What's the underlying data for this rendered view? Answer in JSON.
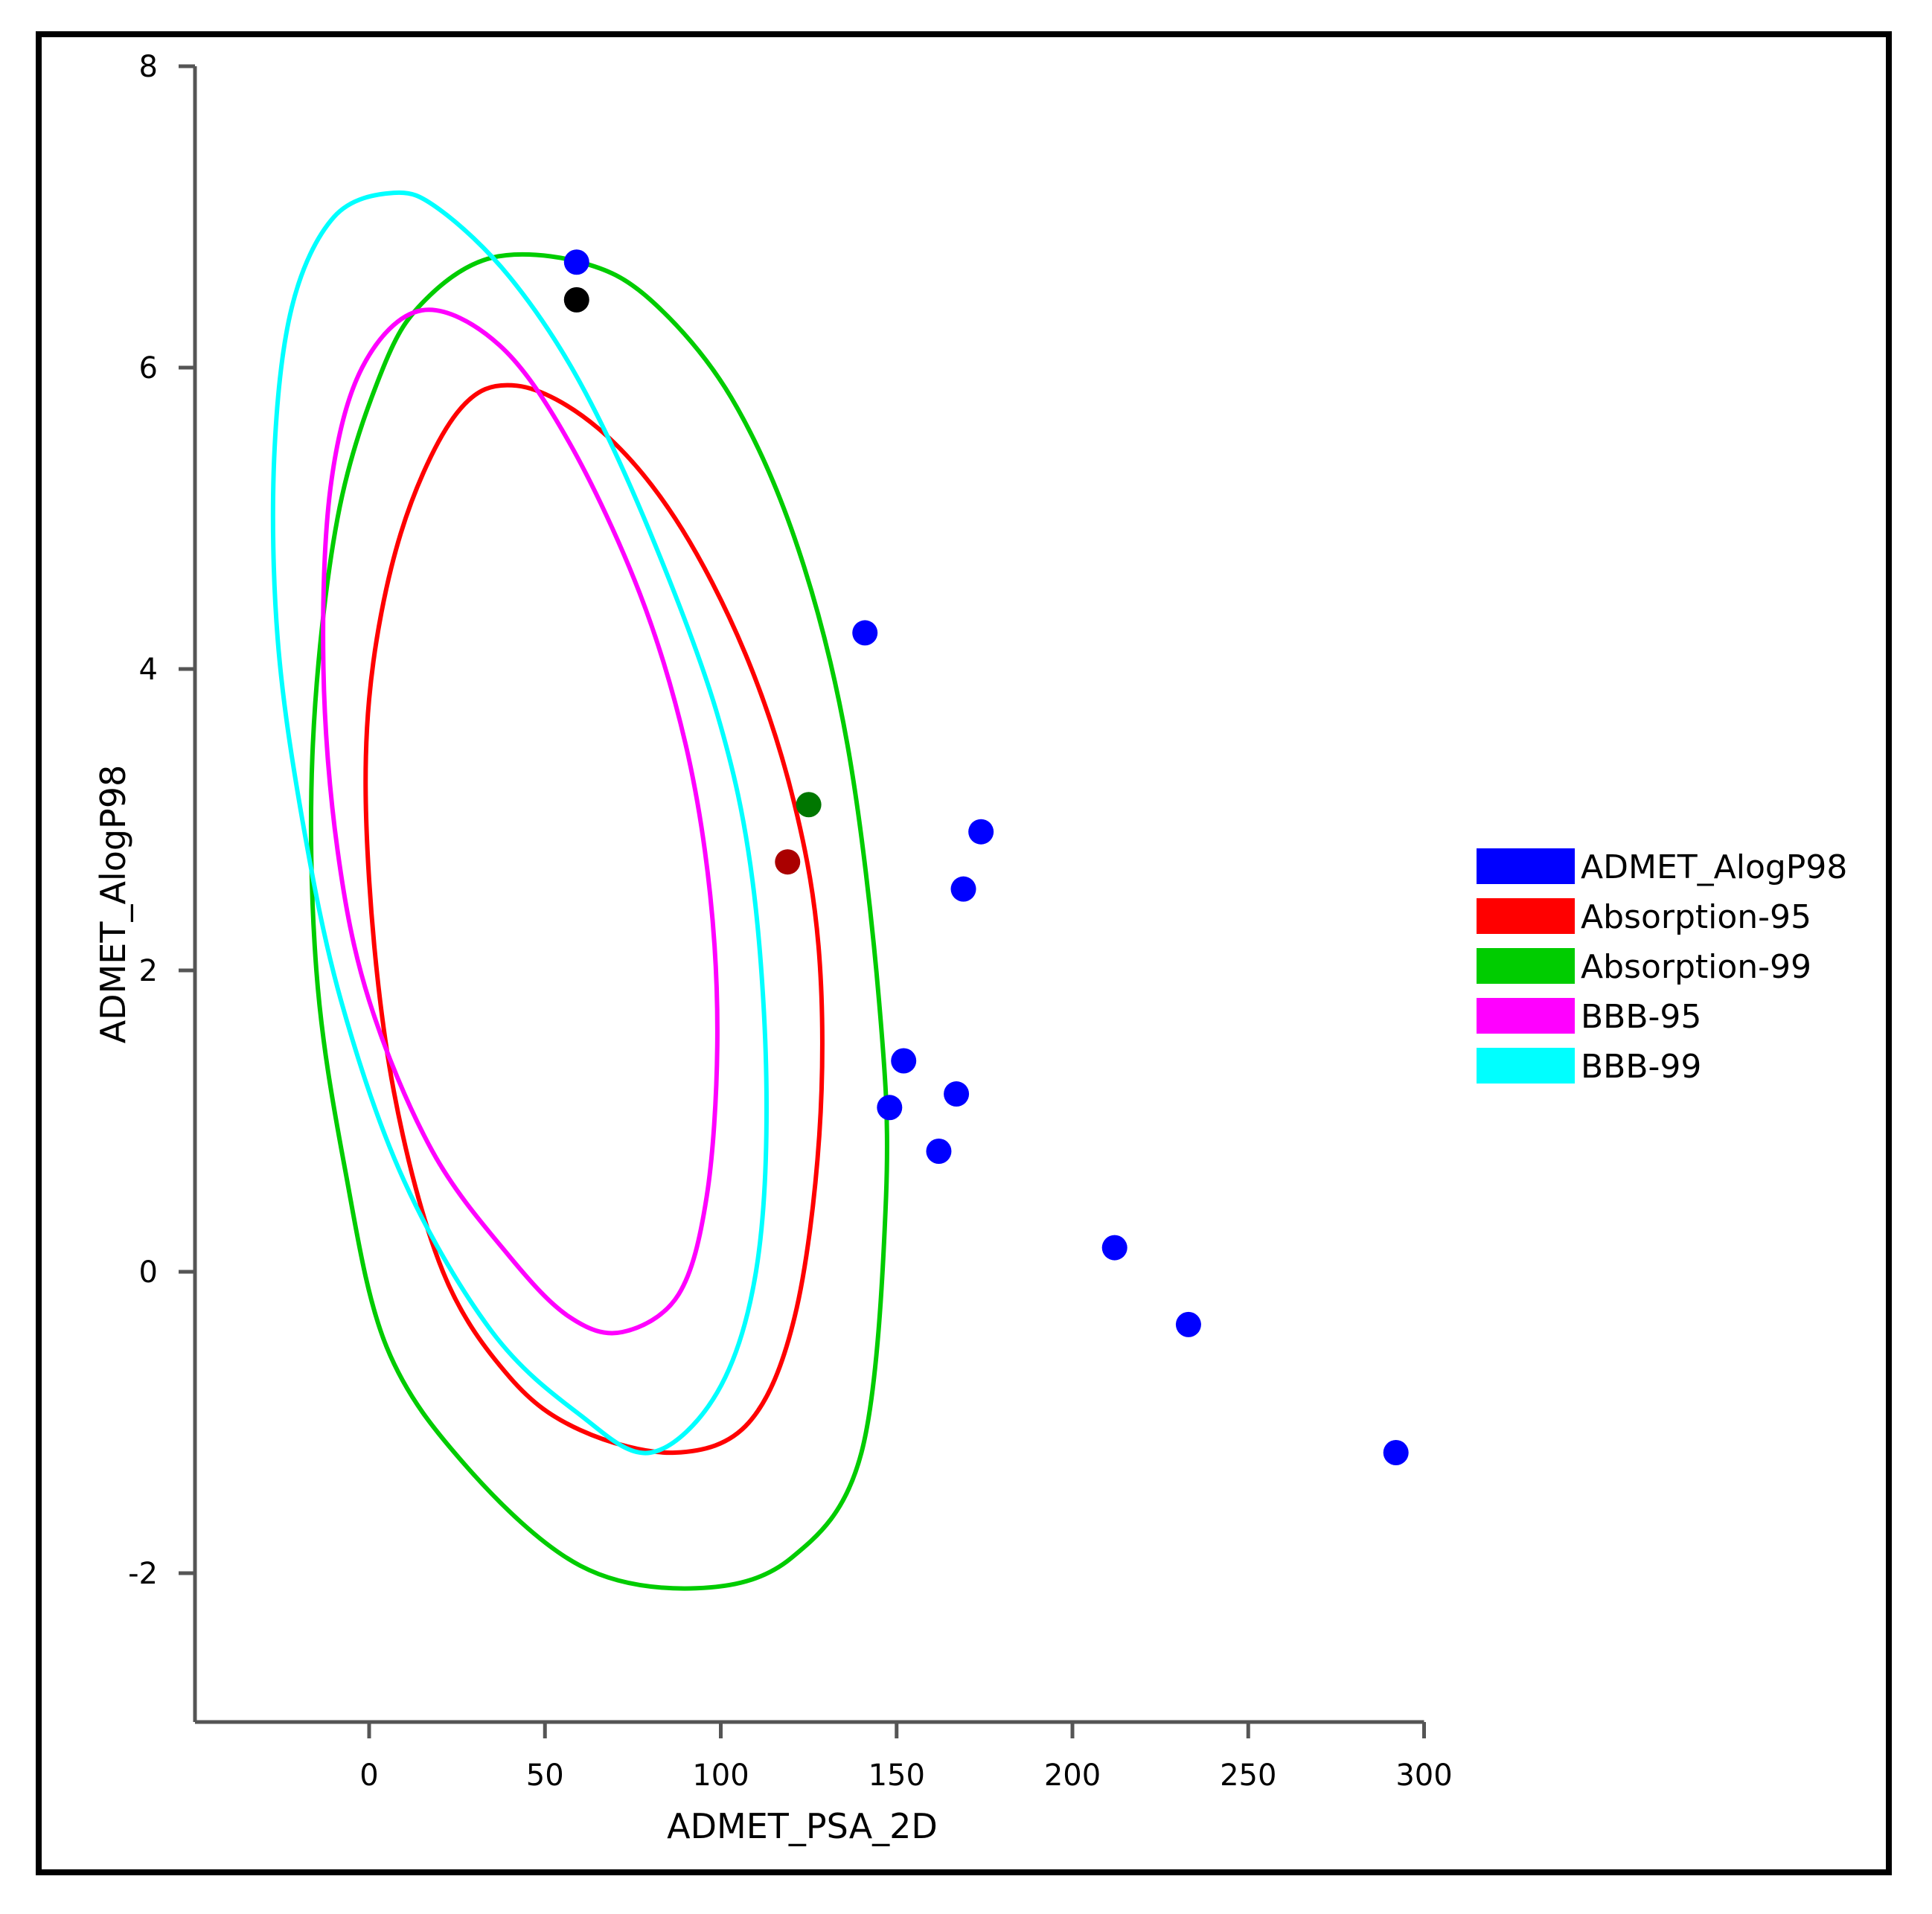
{
  "chart_data": {
    "type": "scatter",
    "xlabel": "ADMET_PSA_2D",
    "ylabel": "ADMET_AlogP98",
    "xlim": [
      -50,
      305
    ],
    "ylim": [
      -3,
      8
    ],
    "x_ticks": [
      0,
      50,
      100,
      150,
      200,
      250,
      300
    ],
    "y_ticks": [
      -2,
      0,
      2,
      4,
      6,
      8
    ],
    "x_tick_labels": [
      "0",
      "50",
      "100",
      "150",
      "200",
      "250",
      "300"
    ],
    "y_tick_labels": [
      "-2",
      "0",
      "2",
      "4",
      "6",
      "8"
    ],
    "grid": false,
    "legend_position": "right",
    "legend": [
      {
        "label": "ADMET_AlogP98",
        "color": "#0000ff"
      },
      {
        "label": "Absorption-95",
        "color": "#ff0000"
      },
      {
        "label": "Absorption-99",
        "color": "#00cc00"
      },
      {
        "label": "BBB-95",
        "color": "#ff00ff"
      },
      {
        "label": "BBB-99",
        "color": "#00ffff"
      }
    ],
    "points": [
      {
        "x": 59,
        "y": 6.7,
        "color": "#0000ff"
      },
      {
        "x": 59,
        "y": 6.45,
        "color": "#000000"
      },
      {
        "x": 141,
        "y": 4.24,
        "color": "#0000ff"
      },
      {
        "x": 125,
        "y": 3.1,
        "color": "#007700"
      },
      {
        "x": 119,
        "y": 2.72,
        "color": "#aa0000"
      },
      {
        "x": 174,
        "y": 2.92,
        "color": "#0000ff"
      },
      {
        "x": 169,
        "y": 2.54,
        "color": "#0000ff"
      },
      {
        "x": 152,
        "y": 1.4,
        "color": "#0000ff"
      },
      {
        "x": 148,
        "y": 1.09,
        "color": "#0000ff"
      },
      {
        "x": 167,
        "y": 1.18,
        "color": "#0000ff"
      },
      {
        "x": 162,
        "y": 0.8,
        "color": "#0000ff"
      },
      {
        "x": 212,
        "y": 0.16,
        "color": "#0000ff"
      },
      {
        "x": 233,
        "y": -0.35,
        "color": "#0000ff"
      },
      {
        "x": 292,
        "y": -1.2,
        "color": "#0000ff"
      }
    ],
    "ellipses": [
      {
        "name": "Absorption-99",
        "color": "#00cc00",
        "polyline": [
          [
            93,
            -2.1
          ],
          [
            120,
            -1.9
          ],
          [
            140,
            -1.2
          ],
          [
            147,
            0.5
          ],
          [
            145,
            1.8
          ],
          [
            136,
            3.5
          ],
          [
            122,
            4.8
          ],
          [
            103,
            5.8
          ],
          [
            80,
            6.45
          ],
          [
            60,
            6.7
          ],
          [
            35,
            6.73
          ],
          [
            16,
            6.45
          ],
          [
            4,
            6.0
          ],
          [
            -9,
            5.0
          ],
          [
            -16,
            3.5
          ],
          [
            -15,
            2.0
          ],
          [
            -7,
            0.7
          ],
          [
            5,
            -0.5
          ],
          [
            28,
            -1.3
          ],
          [
            60,
            -1.95
          ],
          [
            93,
            -2.1
          ]
        ]
      },
      {
        "name": "Absorption-95",
        "color": "#ff0000",
        "polyline": [
          [
            87,
            -1.2
          ],
          [
            108,
            -1.0
          ],
          [
            121,
            -0.3
          ],
          [
            128,
            0.9
          ],
          [
            128,
            2.1
          ],
          [
            121,
            3.1
          ],
          [
            107,
            4.1
          ],
          [
            87,
            5.0
          ],
          [
            65,
            5.6
          ],
          [
            42,
            5.88
          ],
          [
            25,
            5.7
          ],
          [
            9,
            4.9
          ],
          [
            0,
            3.8
          ],
          [
            0,
            2.6
          ],
          [
            7,
            1.2
          ],
          [
            21,
            0.0
          ],
          [
            40,
            -0.7
          ],
          [
            60,
            -1.05
          ],
          [
            87,
            -1.2
          ]
        ]
      },
      {
        "name": "BBB-95",
        "color": "#ff00ff",
        "polyline": [
          [
            72,
            -0.4
          ],
          [
            88,
            -0.15
          ],
          [
            96,
            0.5
          ],
          [
            99,
            1.5
          ],
          [
            97,
            2.5
          ],
          [
            90,
            3.5
          ],
          [
            77,
            4.5
          ],
          [
            57,
            5.5
          ],
          [
            37,
            6.15
          ],
          [
            15,
            6.38
          ],
          [
            -2,
            6.0
          ],
          [
            -11,
            5.2
          ],
          [
            -13,
            4.0
          ],
          [
            -9,
            2.8
          ],
          [
            0,
            1.8
          ],
          [
            18,
            0.8
          ],
          [
            40,
            0.1
          ],
          [
            57,
            -0.3
          ],
          [
            72,
            -0.4
          ]
        ]
      },
      {
        "name": "BBB-99",
        "color": "#00ffff",
        "polyline": [
          [
            80,
            -1.2
          ],
          [
            99,
            -0.8
          ],
          [
            110,
            0.0
          ],
          [
            113,
            1.2
          ],
          [
            109,
            2.6
          ],
          [
            99,
            3.7
          ],
          [
            80,
            4.9
          ],
          [
            60,
            5.9
          ],
          [
            40,
            6.6
          ],
          [
            20,
            7.05
          ],
          [
            7,
            7.16
          ],
          [
            -10,
            7.0
          ],
          [
            -22,
            6.4
          ],
          [
            -27,
            5.4
          ],
          [
            -26,
            4.2
          ],
          [
            -19,
            3.0
          ],
          [
            -8,
            1.8
          ],
          [
            10,
            0.6
          ],
          [
            35,
            -0.4
          ],
          [
            60,
            -0.95
          ],
          [
            80,
            -1.2
          ]
        ]
      }
    ]
  }
}
